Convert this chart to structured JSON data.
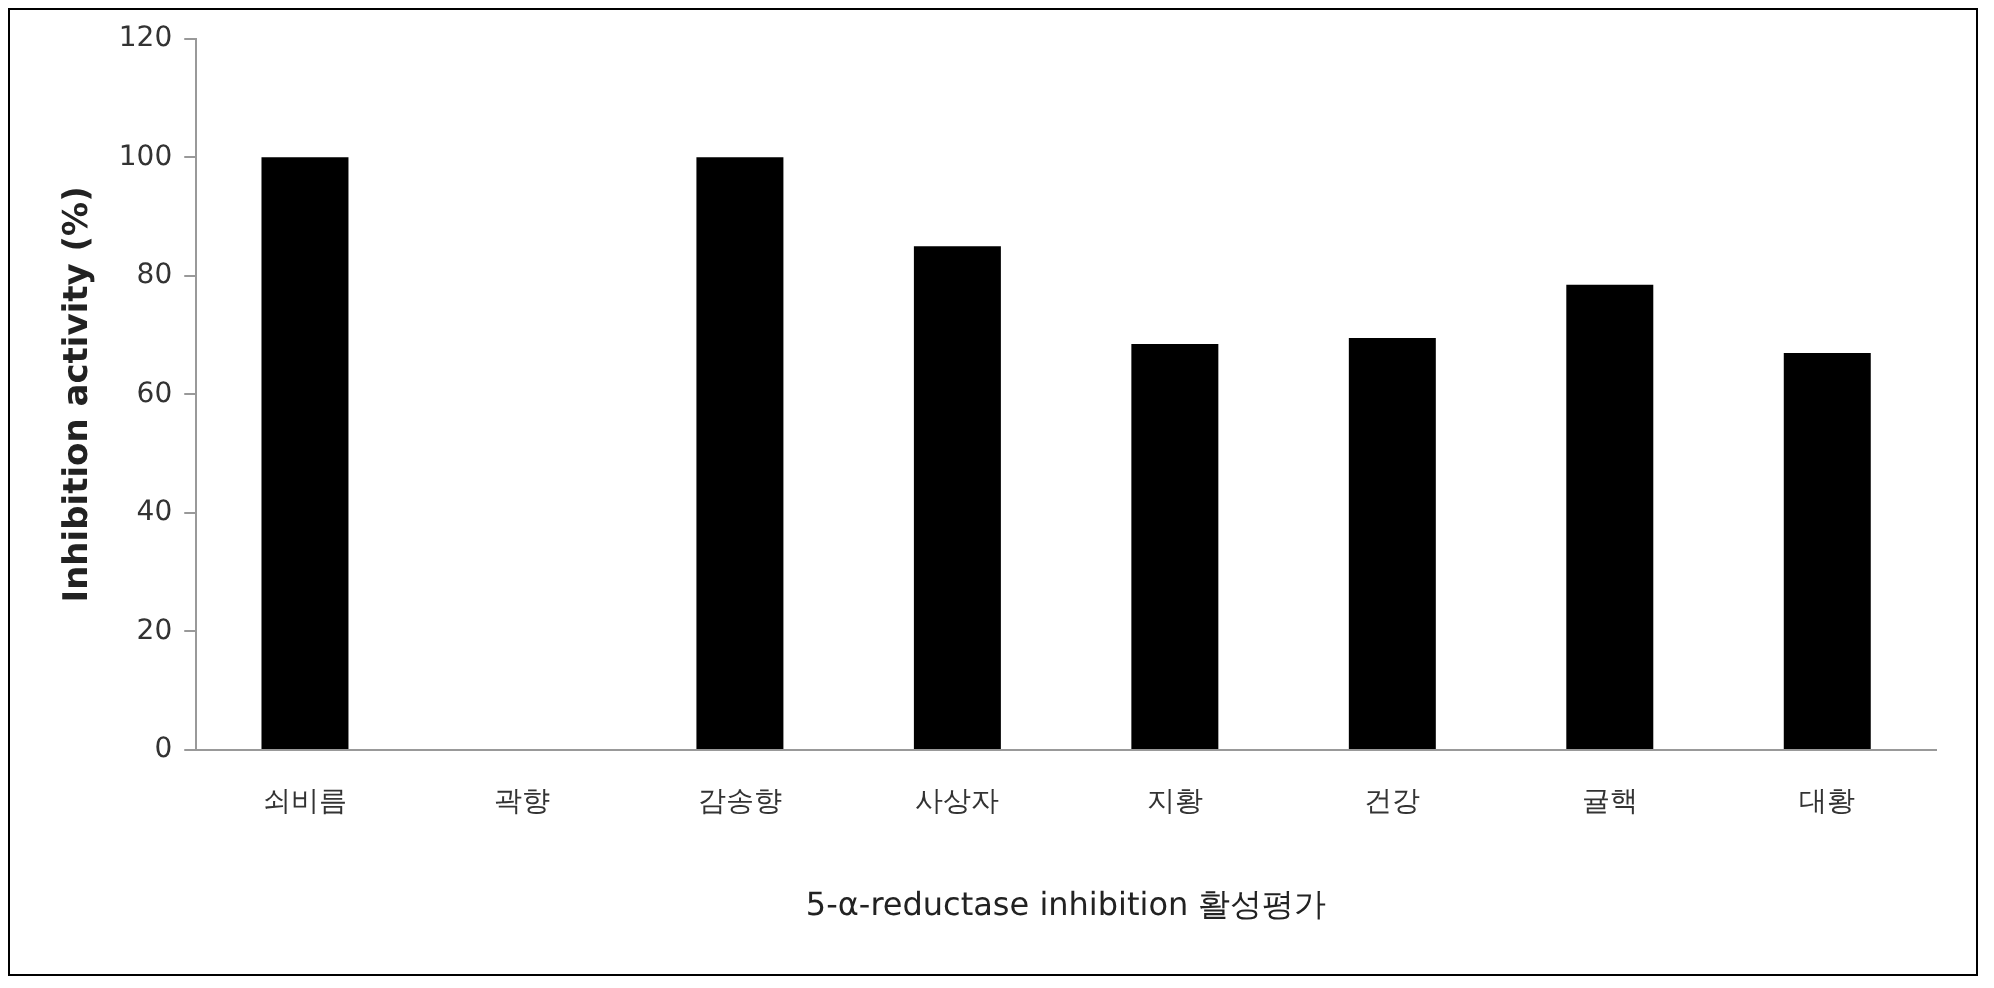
{
  "chart_data": {
    "type": "bar",
    "xlabel": "5-α-reductase inhibition 활성평가",
    "ylabel": "Inhibition activity (%)",
    "categories": [
      "쇠비름",
      "곽향",
      "감송향",
      "사상자",
      "지황",
      "건강",
      "귤핵",
      "대황"
    ],
    "values": [
      100,
      0,
      100,
      85,
      68.5,
      69.5,
      78.5,
      67
    ],
    "color": "#000000",
    "ylim": [
      0,
      120
    ],
    "yticks": [
      0,
      20,
      40,
      60,
      80,
      100,
      120
    ],
    "grid": false,
    "legend": false
  }
}
